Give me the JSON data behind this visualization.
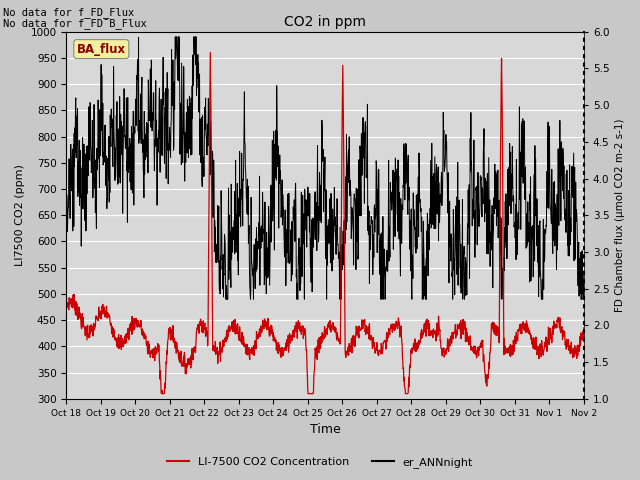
{
  "title": "CO2 in ppm",
  "xlabel": "Time",
  "ylabel_left": "LI7500 CO2 (ppm)",
  "ylabel_right": "FD Chamber flux (μmol CO2 m-2 s-1)",
  "ylim_left": [
    300,
    1000
  ],
  "ylim_right": [
    1.0,
    6.0
  ],
  "yticks_left": [
    300,
    350,
    400,
    450,
    500,
    550,
    600,
    650,
    700,
    750,
    800,
    850,
    900,
    950,
    1000
  ],
  "yticks_right": [
    1.0,
    1.5,
    2.0,
    2.5,
    3.0,
    3.5,
    4.0,
    4.5,
    5.0,
    5.5,
    6.0
  ],
  "xtick_labels": [
    "Oct 18",
    "Oct 19",
    "Oct 20",
    "Oct 21",
    "Oct 22",
    "Oct 23",
    "Oct 24",
    "Oct 25",
    "Oct 26",
    "Oct 27",
    "Oct 28",
    "Oct 29",
    "Oct 30",
    "Oct 31",
    "Nov 1",
    "Nov 2"
  ],
  "text_no_data_1": "No data for f_FD_Flux",
  "text_no_data_2": "No data for f_FD¯B_Flux",
  "ba_flux_label": "BA_flux",
  "legend_red_label": "LI-7500 CO2 Concentration",
  "legend_black_label": "er_ANNnight",
  "fig_bg_color": "#c8c8c8",
  "plot_bg_color": "#d8d8d8",
  "red_color": "#cc0000",
  "black_color": "#000000",
  "grid_color": "#ffffff",
  "right_axis_dotted": true
}
